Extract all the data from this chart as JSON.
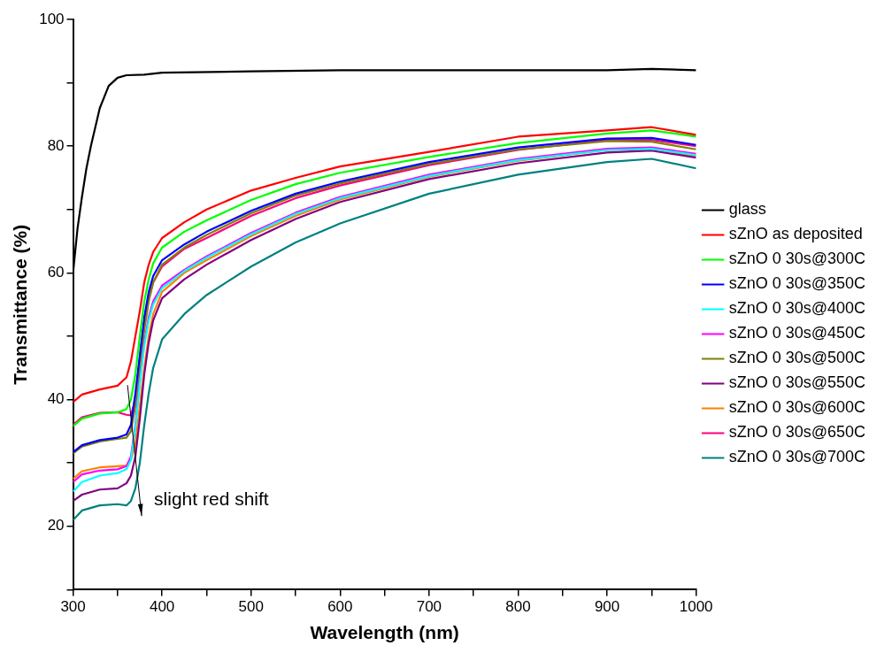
{
  "chart_data": {
    "type": "line",
    "xlabel": "Wavelength (nm)",
    "ylabel": "Transmittance (%)",
    "x": [
      300,
      310,
      330,
      350,
      360,
      365,
      370,
      375,
      380,
      385,
      390,
      400,
      425,
      450,
      500,
      550,
      600,
      700,
      800,
      900,
      950,
      1000
    ],
    "series": [
      {
        "name": "glass",
        "color": "#000000",
        "x": [
          300,
          305,
          310,
          315,
          320,
          330,
          340,
          350,
          360,
          380,
          400,
          500,
          600,
          700,
          800,
          900,
          950,
          1000
        ],
        "values": [
          60,
          67,
          72,
          76.5,
          80,
          86,
          89.5,
          90.8,
          91.2,
          91.3,
          91.6,
          91.8,
          92,
          92,
          92,
          92,
          92.2,
          92
        ]
      },
      {
        "name": "sZnO as deposited",
        "color": "#ff0000",
        "values": [
          39.6,
          40.8,
          41.6,
          42.2,
          43.5,
          46,
          50,
          54,
          58.5,
          61.3,
          63.3,
          65.5,
          68,
          70,
          73,
          75,
          76.8,
          79.1,
          81.5,
          82.5,
          83,
          81.8
        ]
      },
      {
        "name": "sZnO 0 30s@300C",
        "color": "#00ff00",
        "values": [
          35.8,
          37,
          37.8,
          38,
          38.5,
          40,
          44,
          50,
          55.5,
          59,
          61.5,
          64,
          66.5,
          68.3,
          71.5,
          74,
          75.8,
          78.3,
          80.5,
          82,
          82.5,
          81.5
        ]
      },
      {
        "name": "sZnO 0 30s@350C",
        "color": "#0000ff",
        "values": [
          31.7,
          32.8,
          33.6,
          34,
          34.5,
          36,
          41,
          47,
          53,
          57,
          59.5,
          62,
          64.5,
          66.5,
          69.8,
          72.5,
          74.4,
          77.5,
          79.8,
          81.2,
          81.3,
          80.2
        ]
      },
      {
        "name": "sZnO 0 30s@400C",
        "color": "#00ffff",
        "values": [
          25.5,
          27,
          28,
          28.4,
          29,
          30.5,
          35.5,
          42.5,
          48.5,
          52.5,
          55,
          57.6,
          60.3,
          62.4,
          66.1,
          69.3,
          71.8,
          75.3,
          77.8,
          79.4,
          79.6,
          78.6
        ]
      },
      {
        "name": "sZnO 0 30s@450C",
        "color": "#ff00ff",
        "values": [
          27,
          28.2,
          28.8,
          29,
          29.5,
          31,
          36,
          43,
          49,
          53,
          55.5,
          58,
          60.5,
          62.6,
          66.3,
          69.5,
          72,
          75.5,
          78,
          79.6,
          79.8,
          78.8
        ]
      },
      {
        "name": "sZnO 0 30s@500C",
        "color": "#808000",
        "values": [
          31.5,
          32.6,
          33.4,
          33.8,
          34,
          35,
          39,
          45,
          51,
          55.5,
          58.5,
          61.3,
          64,
          66,
          69.4,
          72.2,
          74.1,
          77.2,
          79.5,
          80.8,
          80.7,
          79.5
        ]
      },
      {
        "name": "sZnO 0 30s@550C",
        "color": "#800080",
        "values": [
          24,
          25,
          25.8,
          26,
          26.8,
          28,
          31,
          37,
          44,
          49,
          52.5,
          56,
          59,
          61.3,
          65.2,
          68.5,
          71.2,
          74.8,
          77.3,
          79,
          79.3,
          78.2
        ]
      },
      {
        "name": "sZnO 0 30s@600C",
        "color": "#ff8000",
        "values": [
          27.5,
          28.7,
          29.3,
          29.5,
          29.6,
          30.5,
          33,
          39,
          45,
          50,
          53.5,
          57,
          60,
          62,
          65.8,
          69,
          71.6,
          75.2,
          77.7,
          79.4,
          79.6,
          78.5
        ]
      },
      {
        "name": "sZnO 0 30s@650C",
        "color": "#ff0080",
        "values": [
          36,
          37.2,
          37.9,
          38,
          37.6,
          37.5,
          40,
          46,
          52,
          56,
          58.5,
          61,
          63.8,
          65.5,
          69,
          71.8,
          73.8,
          77,
          79.4,
          81,
          81,
          80
        ]
      },
      {
        "name": "sZnO 0 30s@700C",
        "color": "#008080",
        "values": [
          21,
          22.5,
          23.3,
          23.5,
          23.3,
          24,
          26,
          30,
          36,
          41,
          45,
          49.5,
          53.5,
          56.5,
          61,
          64.8,
          67.8,
          72.5,
          75.5,
          77.5,
          78,
          76.5
        ]
      }
    ],
    "xlim": [
      300,
      1000
    ],
    "ylim": [
      10,
      100
    ],
    "xticks": [
      300,
      {
        "value": 350,
        "label": null
      },
      400,
      {
        "value": 450,
        "label": null
      },
      500,
      {
        "value": 550,
        "label": null
      },
      600,
      {
        "value": 650,
        "label": null
      },
      700,
      {
        "value": 750,
        "label": null
      },
      800,
      {
        "value": 850,
        "label": null
      },
      900,
      {
        "value": 950,
        "label": null
      },
      1000
    ],
    "yticks": [
      {
        "value": 10,
        "label": null
      },
      20,
      {
        "value": 30,
        "label": null
      },
      40,
      {
        "value": 50,
        "label": null
      },
      60,
      {
        "value": 70,
        "label": null
      },
      80,
      {
        "value": 90,
        "label": null
      },
      100
    ],
    "annotations": [
      "slight red shift"
    ],
    "grid": false,
    "legend": "right",
    "marker": "none",
    "line_style": "solid"
  }
}
